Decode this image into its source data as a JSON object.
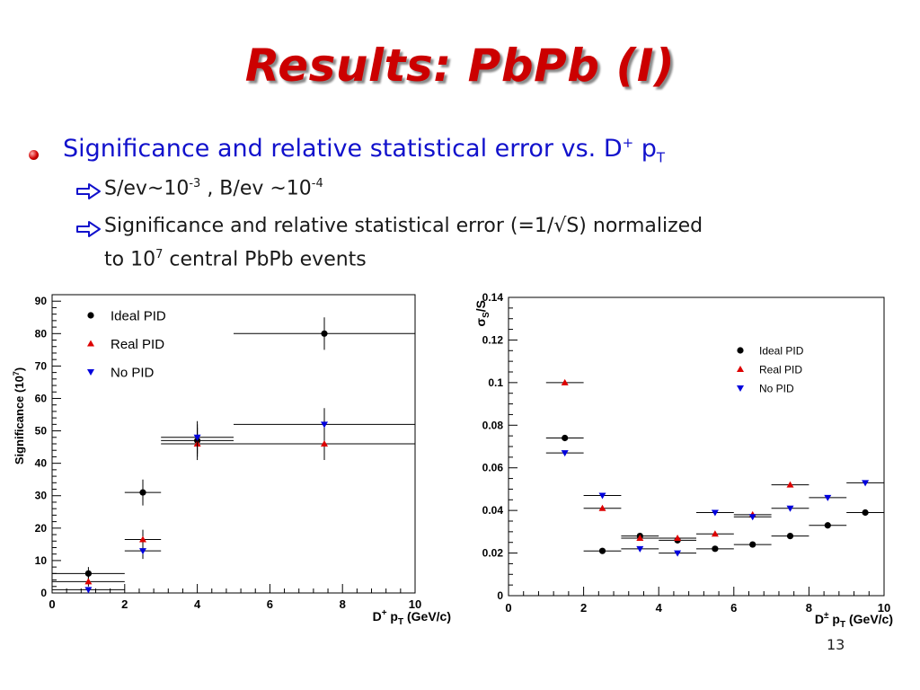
{
  "slide": {
    "title": "Results: PbPb (I)",
    "bullet": {
      "text": "Significance and relative statistical error vs. D",
      "sup": "+",
      "p": " p",
      "sub": "T"
    },
    "sub1": {
      "a": "S/ev~10",
      "a_sup": "-3",
      "b": " , B/ev ~10",
      "b_sup": "-4"
    },
    "sub2": {
      "line1": "Significance and relative statistical error (=1/√S) normalized",
      "line2_a": "to 10",
      "line2_sup": "7",
      "line2_b": " central PbPb events"
    },
    "page_number": "13"
  },
  "colors": {
    "title": "#cc0000",
    "bullet_text": "#1111cc",
    "ideal": "#000000",
    "real": "#dd0000",
    "nopid": "#0000dd"
  },
  "chart_data": [
    {
      "type": "scatter",
      "title": "",
      "xlabel": "D+ pT (GeV/c)",
      "xlabel_parts": {
        "a": "D",
        "sup": "+",
        "b": " p",
        "sub": "T",
        "c": " (GeV/c)"
      },
      "ylabel": "Significance (10^7)",
      "ylabel_parts": {
        "a": "Significance (10",
        "sup": "7",
        "b": ")"
      },
      "xlim": [
        0,
        10
      ],
      "ylim": [
        0,
        92
      ],
      "x_ticks": [
        0,
        2,
        4,
        6,
        8,
        10
      ],
      "y_ticks": [
        0,
        10,
        20,
        30,
        40,
        50,
        60,
        70,
        80,
        90
      ],
      "legend_position": "top-left",
      "series": [
        {
          "name": "Ideal PID",
          "marker": "circle",
          "color": "#000000",
          "x": [
            1,
            2.5,
            4,
            7.5
          ],
          "y": [
            6,
            31,
            47,
            80
          ],
          "xerr": [
            1,
            0.5,
            1,
            2.5
          ],
          "yerr": [
            2,
            4,
            5,
            5
          ]
        },
        {
          "name": "Real PID",
          "marker": "triangle-up",
          "color": "#dd0000",
          "x": [
            1,
            2.5,
            4,
            7.5
          ],
          "y": [
            3.5,
            16.5,
            46,
            46
          ],
          "xerr": [
            1,
            0.5,
            1,
            2.5
          ],
          "yerr": [
            1.5,
            3,
            5,
            5
          ]
        },
        {
          "name": "No PID",
          "marker": "triangle-down",
          "color": "#0000dd",
          "x": [
            1,
            2.5,
            4,
            7.5
          ],
          "y": [
            1,
            13,
            48,
            52
          ],
          "xerr": [
            1,
            0.5,
            1,
            2.5
          ],
          "yerr": [
            0.5,
            2.5,
            5,
            5
          ]
        }
      ]
    },
    {
      "type": "scatter",
      "title": "",
      "xlabel": "D± pT (GeV/c)",
      "xlabel_parts": {
        "a": "D",
        "sup": "±",
        "b": " p",
        "sub": "T",
        "c": " (GeV/c)"
      },
      "ylabel": "σS/S",
      "ylabel_parts": {
        "a": "σ",
        "sub": "S",
        "b": "/S"
      },
      "xlim": [
        0,
        10
      ],
      "ylim": [
        0,
        0.14
      ],
      "x_ticks": [
        0,
        2,
        4,
        6,
        8,
        10
      ],
      "y_ticks": [
        0,
        0.02,
        0.04,
        0.06,
        0.08,
        0.1,
        0.12,
        0.14
      ],
      "y_tick_labels": [
        "0",
        "0.02",
        "0.04",
        "0.06",
        "0.08",
        "0.1",
        "0.12",
        "0.14"
      ],
      "legend_position": "top-right",
      "series": [
        {
          "name": "Ideal PID",
          "marker": "circle",
          "color": "#000000",
          "x": [
            1.5,
            2.5,
            3.5,
            4.5,
            5.5,
            6.5,
            7.5,
            8.5,
            9.5
          ],
          "y": [
            0.074,
            0.021,
            0.028,
            0.026,
            0.022,
            0.024,
            0.028,
            0.033,
            0.039
          ],
          "xerr": [
            0.5,
            0.5,
            0.5,
            0.5,
            0.5,
            0.5,
            0.5,
            0.5,
            0.5
          ]
        },
        {
          "name": "Real PID",
          "marker": "triangle-up",
          "color": "#dd0000",
          "x": [
            1.5,
            2.5,
            3.5,
            4.5,
            5.5,
            6.5,
            7.5
          ],
          "y": [
            0.1,
            0.041,
            0.027,
            0.027,
            0.029,
            0.038,
            0.052
          ],
          "xerr": [
            0.5,
            0.5,
            0.5,
            0.5,
            0.5,
            0.5,
            0.5
          ]
        },
        {
          "name": "No PID",
          "marker": "triangle-down",
          "color": "#0000dd",
          "x": [
            1.5,
            2.5,
            3.5,
            4.5,
            5.5,
            6.5,
            7.5,
            8.5,
            9.5
          ],
          "y": [
            0.067,
            0.047,
            0.022,
            0.02,
            0.039,
            0.037,
            0.041,
            0.046,
            0.053
          ],
          "xerr": [
            0.5,
            0.5,
            0.5,
            0.5,
            0.5,
            0.5,
            0.5,
            0.5,
            0.5
          ]
        }
      ]
    }
  ]
}
